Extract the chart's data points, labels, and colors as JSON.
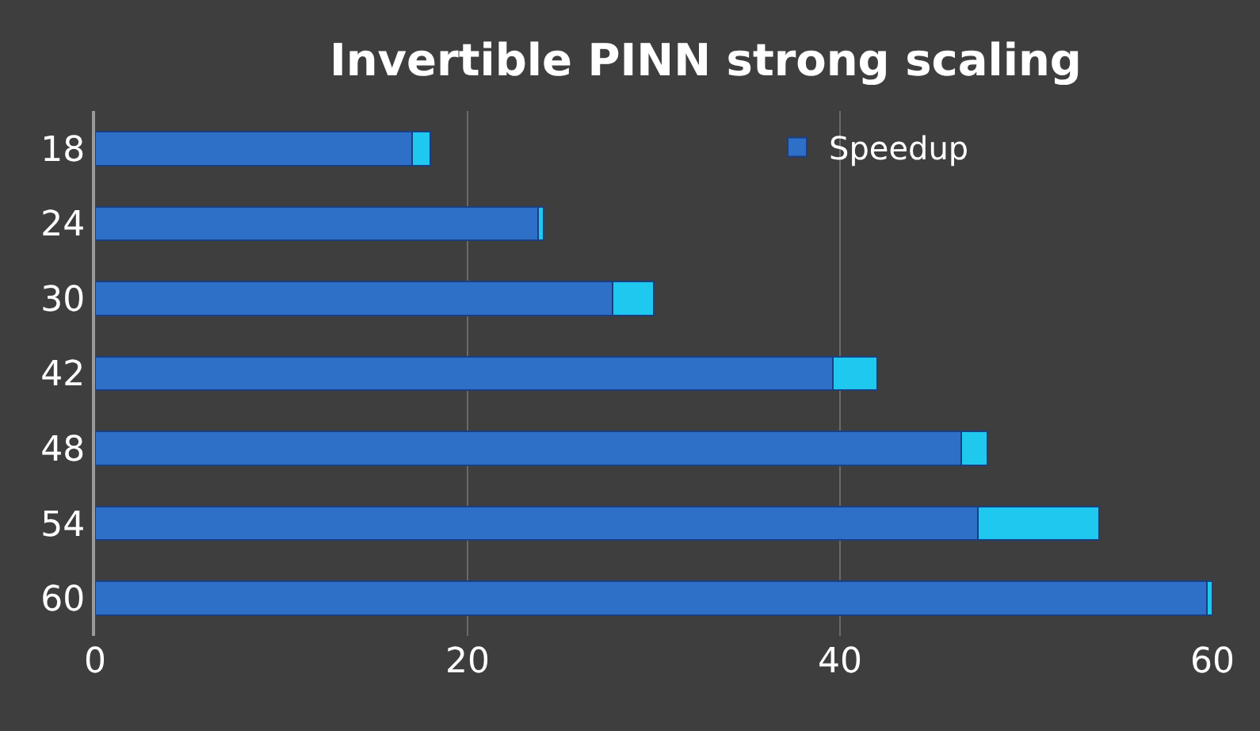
{
  "chart_data": {
    "type": "bar",
    "orientation": "horizontal",
    "stacked": true,
    "title": "Invertible PINN strong scaling",
    "categories": [
      "18",
      "24",
      "30",
      "42",
      "48",
      "54",
      "60"
    ],
    "series": [
      {
        "name": "Speedup",
        "color": "#2e6fc8",
        "values": [
          17.0,
          23.8,
          27.8,
          39.6,
          46.5,
          47.4,
          59.7
        ]
      },
      {
        "color": "#1fc8ef",
        "values": [
          1.0,
          0.3,
          2.2,
          2.4,
          1.4,
          6.5,
          0.3
        ]
      }
    ],
    "xlim": [
      0,
      60
    ],
    "xticks": [
      0,
      20,
      40,
      60
    ],
    "grid": "x",
    "legend": "top right"
  }
}
